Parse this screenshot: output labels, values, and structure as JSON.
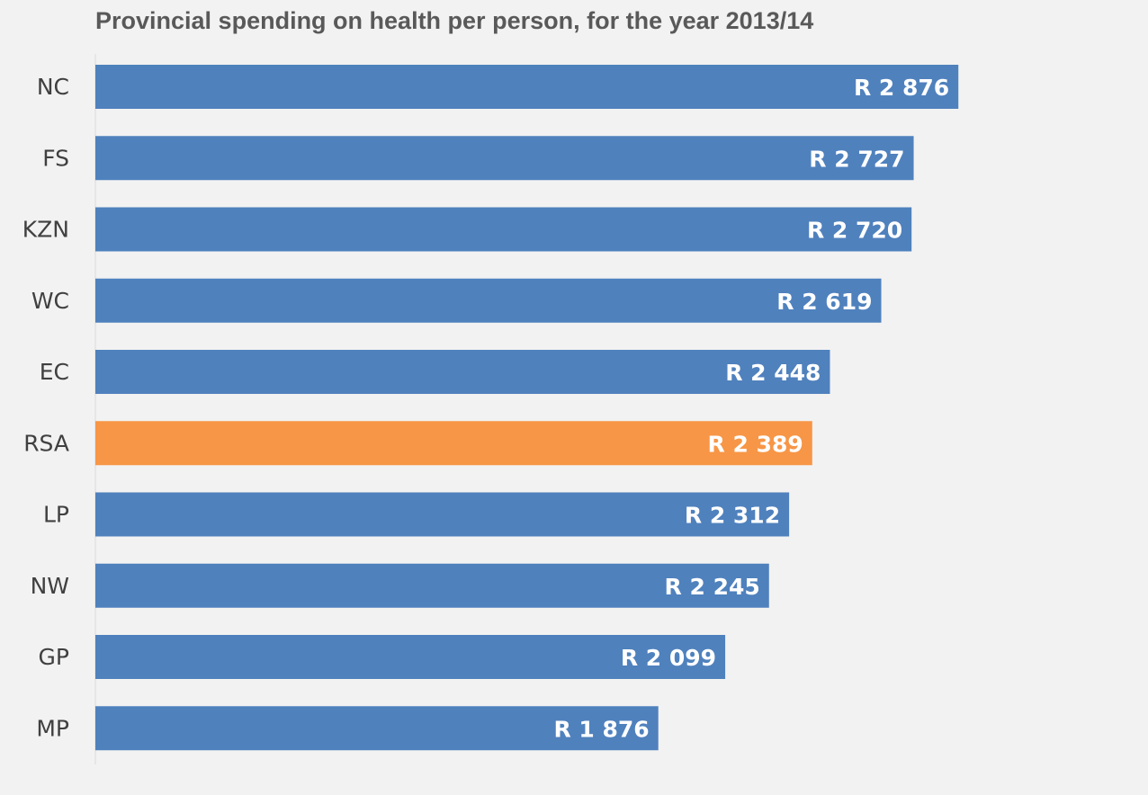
{
  "chart_data": {
    "type": "bar",
    "orientation": "horizontal",
    "title": "Provincial spending on health per person, for the year 2013/14",
    "xlabel": "",
    "ylabel": "",
    "categories": [
      "NC",
      "FS",
      "KZN",
      "WC",
      "EC",
      "RSA",
      "LP",
      "NW",
      "GP",
      "MP"
    ],
    "values": [
      2876,
      2727,
      2720,
      2619,
      2448,
      2389,
      2312,
      2245,
      2099,
      1876
    ],
    "value_labels": [
      "R 2 876",
      "R 2 727",
      "R 2 720",
      "R 2 619",
      "R 2 448",
      "R 2 389",
      "R 2 312",
      "R 2 245",
      "R 2 099",
      "R 1 876"
    ],
    "highlight_category": "RSA",
    "xlim": [
      0,
      3400
    ],
    "grid": false,
    "legend": "none"
  },
  "colors": {
    "bar": "#4f81bd",
    "highlight": "#f79646",
    "axis": "#d9d9d9"
  }
}
